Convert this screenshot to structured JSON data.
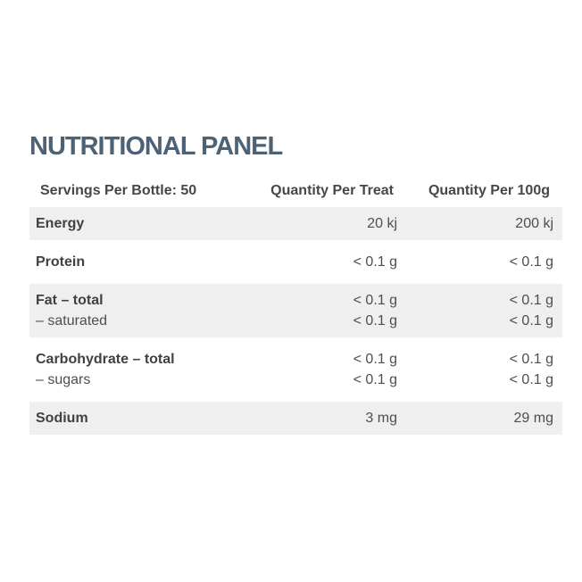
{
  "title": "NUTRITIONAL PANEL",
  "colors": {
    "page_bg": "#ffffff",
    "title_text": "#4e6277",
    "header_text": "#474747",
    "label_text": "#414141",
    "value_text": "#4e4e4e",
    "shaded_row_bg": "#efefef"
  },
  "table": {
    "headers": [
      "Servings Per Bottle: 50",
      "Quantity Per Treat",
      "Quantity Per 100g"
    ],
    "rows": [
      {
        "shaded": true,
        "lines": [
          [
            "Energy",
            "20 kj",
            "200 kj"
          ]
        ]
      },
      {
        "shaded": false,
        "lines": [
          [
            "Protein",
            "< 0.1 g",
            "< 0.1 g"
          ]
        ]
      },
      {
        "shaded": true,
        "lines": [
          [
            "Fat – total",
            "< 0.1 g",
            "< 0.1 g"
          ],
          [
            "– saturated",
            "< 0.1 g",
            "< 0.1 g"
          ]
        ]
      },
      {
        "shaded": false,
        "lines": [
          [
            "Carbohydrate – total",
            "< 0.1 g",
            "< 0.1 g"
          ],
          [
            "– sugars",
            "< 0.1 g",
            "< 0.1 g"
          ]
        ]
      },
      {
        "shaded": true,
        "lines": [
          [
            "Sodium",
            "3 mg",
            "29 mg"
          ]
        ]
      }
    ]
  }
}
